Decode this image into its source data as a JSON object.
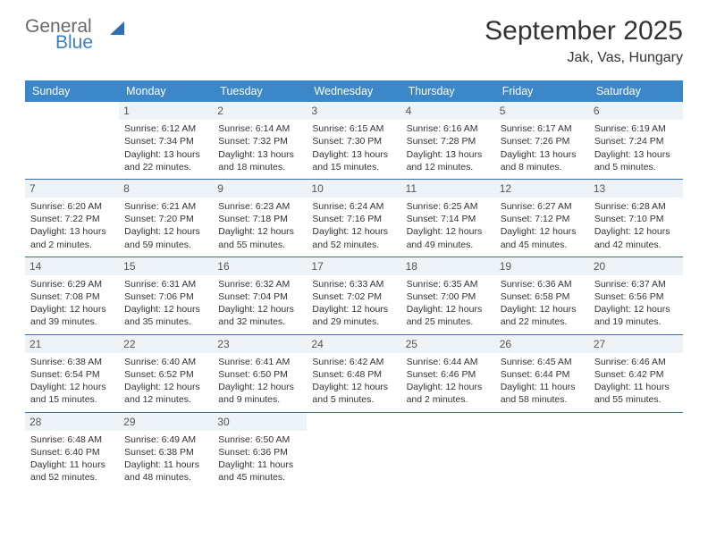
{
  "logo": {
    "word1": "General",
    "word2": "Blue"
  },
  "title": "September 2025",
  "subtitle": "Jak, Vas, Hungary",
  "colors": {
    "header_bg": "#3b87c8",
    "header_text": "#ffffff",
    "daynum_bg": "#eef3f7",
    "row_border": "#3b6fa3",
    "logo_gray": "#6a6a6a",
    "logo_blue": "#3b7fc4",
    "page_bg": "#ffffff"
  },
  "days_of_week": [
    "Sunday",
    "Monday",
    "Tuesday",
    "Wednesday",
    "Thursday",
    "Friday",
    "Saturday"
  ],
  "weeks": [
    [
      {
        "n": "",
        "lines": []
      },
      {
        "n": "1",
        "lines": [
          "Sunrise: 6:12 AM",
          "Sunset: 7:34 PM",
          "Daylight: 13 hours",
          "and 22 minutes."
        ]
      },
      {
        "n": "2",
        "lines": [
          "Sunrise: 6:14 AM",
          "Sunset: 7:32 PM",
          "Daylight: 13 hours",
          "and 18 minutes."
        ]
      },
      {
        "n": "3",
        "lines": [
          "Sunrise: 6:15 AM",
          "Sunset: 7:30 PM",
          "Daylight: 13 hours",
          "and 15 minutes."
        ]
      },
      {
        "n": "4",
        "lines": [
          "Sunrise: 6:16 AM",
          "Sunset: 7:28 PM",
          "Daylight: 13 hours",
          "and 12 minutes."
        ]
      },
      {
        "n": "5",
        "lines": [
          "Sunrise: 6:17 AM",
          "Sunset: 7:26 PM",
          "Daylight: 13 hours",
          "and 8 minutes."
        ]
      },
      {
        "n": "6",
        "lines": [
          "Sunrise: 6:19 AM",
          "Sunset: 7:24 PM",
          "Daylight: 13 hours",
          "and 5 minutes."
        ]
      }
    ],
    [
      {
        "n": "7",
        "lines": [
          "Sunrise: 6:20 AM",
          "Sunset: 7:22 PM",
          "Daylight: 13 hours",
          "and 2 minutes."
        ]
      },
      {
        "n": "8",
        "lines": [
          "Sunrise: 6:21 AM",
          "Sunset: 7:20 PM",
          "Daylight: 12 hours",
          "and 59 minutes."
        ]
      },
      {
        "n": "9",
        "lines": [
          "Sunrise: 6:23 AM",
          "Sunset: 7:18 PM",
          "Daylight: 12 hours",
          "and 55 minutes."
        ]
      },
      {
        "n": "10",
        "lines": [
          "Sunrise: 6:24 AM",
          "Sunset: 7:16 PM",
          "Daylight: 12 hours",
          "and 52 minutes."
        ]
      },
      {
        "n": "11",
        "lines": [
          "Sunrise: 6:25 AM",
          "Sunset: 7:14 PM",
          "Daylight: 12 hours",
          "and 49 minutes."
        ]
      },
      {
        "n": "12",
        "lines": [
          "Sunrise: 6:27 AM",
          "Sunset: 7:12 PM",
          "Daylight: 12 hours",
          "and 45 minutes."
        ]
      },
      {
        "n": "13",
        "lines": [
          "Sunrise: 6:28 AM",
          "Sunset: 7:10 PM",
          "Daylight: 12 hours",
          "and 42 minutes."
        ]
      }
    ],
    [
      {
        "n": "14",
        "lines": [
          "Sunrise: 6:29 AM",
          "Sunset: 7:08 PM",
          "Daylight: 12 hours",
          "and 39 minutes."
        ]
      },
      {
        "n": "15",
        "lines": [
          "Sunrise: 6:31 AM",
          "Sunset: 7:06 PM",
          "Daylight: 12 hours",
          "and 35 minutes."
        ]
      },
      {
        "n": "16",
        "lines": [
          "Sunrise: 6:32 AM",
          "Sunset: 7:04 PM",
          "Daylight: 12 hours",
          "and 32 minutes."
        ]
      },
      {
        "n": "17",
        "lines": [
          "Sunrise: 6:33 AM",
          "Sunset: 7:02 PM",
          "Daylight: 12 hours",
          "and 29 minutes."
        ]
      },
      {
        "n": "18",
        "lines": [
          "Sunrise: 6:35 AM",
          "Sunset: 7:00 PM",
          "Daylight: 12 hours",
          "and 25 minutes."
        ]
      },
      {
        "n": "19",
        "lines": [
          "Sunrise: 6:36 AM",
          "Sunset: 6:58 PM",
          "Daylight: 12 hours",
          "and 22 minutes."
        ]
      },
      {
        "n": "20",
        "lines": [
          "Sunrise: 6:37 AM",
          "Sunset: 6:56 PM",
          "Daylight: 12 hours",
          "and 19 minutes."
        ]
      }
    ],
    [
      {
        "n": "21",
        "lines": [
          "Sunrise: 6:38 AM",
          "Sunset: 6:54 PM",
          "Daylight: 12 hours",
          "and 15 minutes."
        ]
      },
      {
        "n": "22",
        "lines": [
          "Sunrise: 6:40 AM",
          "Sunset: 6:52 PM",
          "Daylight: 12 hours",
          "and 12 minutes."
        ]
      },
      {
        "n": "23",
        "lines": [
          "Sunrise: 6:41 AM",
          "Sunset: 6:50 PM",
          "Daylight: 12 hours",
          "and 9 minutes."
        ]
      },
      {
        "n": "24",
        "lines": [
          "Sunrise: 6:42 AM",
          "Sunset: 6:48 PM",
          "Daylight: 12 hours",
          "and 5 minutes."
        ]
      },
      {
        "n": "25",
        "lines": [
          "Sunrise: 6:44 AM",
          "Sunset: 6:46 PM",
          "Daylight: 12 hours",
          "and 2 minutes."
        ]
      },
      {
        "n": "26",
        "lines": [
          "Sunrise: 6:45 AM",
          "Sunset: 6:44 PM",
          "Daylight: 11 hours",
          "and 58 minutes."
        ]
      },
      {
        "n": "27",
        "lines": [
          "Sunrise: 6:46 AM",
          "Sunset: 6:42 PM",
          "Daylight: 11 hours",
          "and 55 minutes."
        ]
      }
    ],
    [
      {
        "n": "28",
        "lines": [
          "Sunrise: 6:48 AM",
          "Sunset: 6:40 PM",
          "Daylight: 11 hours",
          "and 52 minutes."
        ]
      },
      {
        "n": "29",
        "lines": [
          "Sunrise: 6:49 AM",
          "Sunset: 6:38 PM",
          "Daylight: 11 hours",
          "and 48 minutes."
        ]
      },
      {
        "n": "30",
        "lines": [
          "Sunrise: 6:50 AM",
          "Sunset: 6:36 PM",
          "Daylight: 11 hours",
          "and 45 minutes."
        ]
      },
      {
        "n": "",
        "lines": []
      },
      {
        "n": "",
        "lines": []
      },
      {
        "n": "",
        "lines": []
      },
      {
        "n": "",
        "lines": []
      }
    ]
  ]
}
